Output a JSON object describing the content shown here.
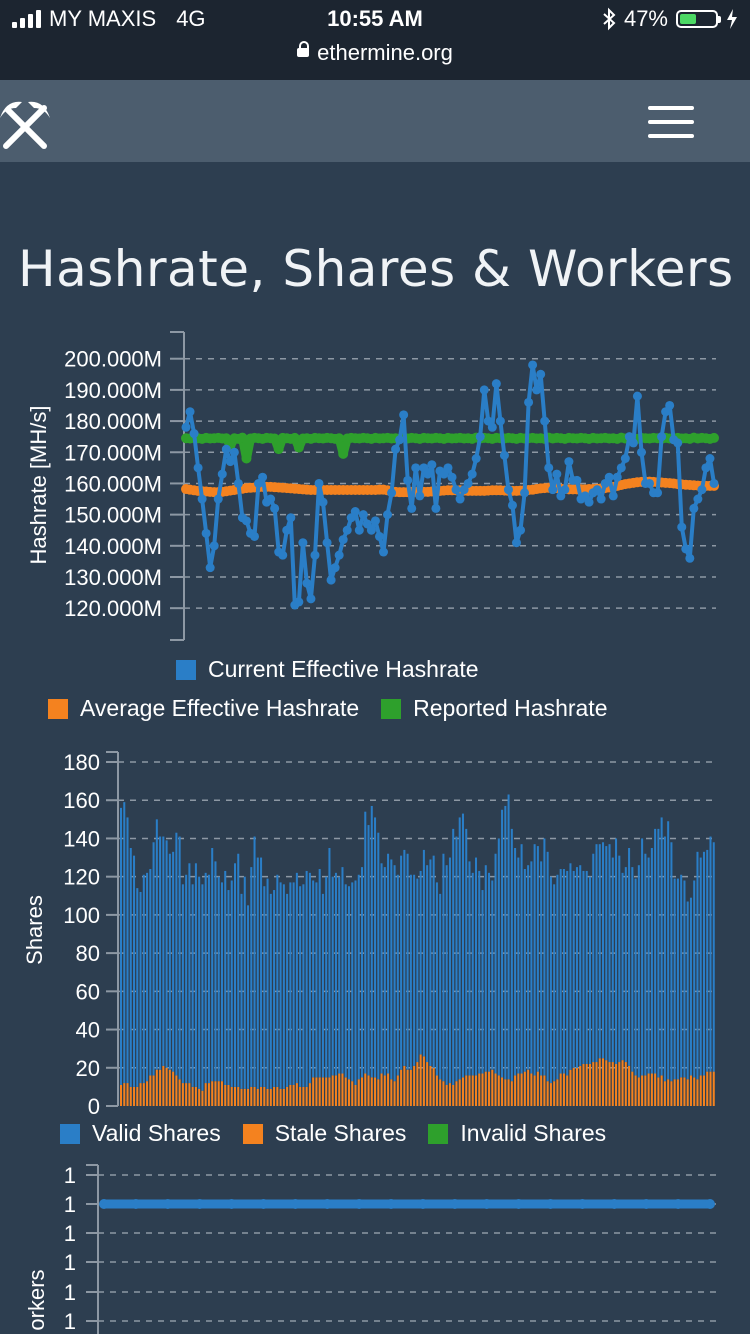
{
  "status_bar": {
    "carrier": "MY MAXIS",
    "network": "4G",
    "time": "10:55 AM",
    "url": "ethermine.org",
    "battery": "47%",
    "battery_level": 0.47,
    "icons": [
      "signal-icon",
      "lock-icon",
      "bluetooth-icon",
      "battery-icon",
      "charging-icon"
    ]
  },
  "navbar": {
    "logo_icon": "crossed-pickaxes-icon",
    "menu_icon": "hamburger-menu-icon"
  },
  "page": {
    "title": "Hashrate, Shares & Workers"
  },
  "colors": {
    "blue": "#2a7ec7",
    "orange": "#f4821f",
    "green": "#2ea02c",
    "background": "#2d3e50",
    "navbar": "#4c5d6e",
    "grid": "#8d98a4"
  },
  "chart_data": [
    {
      "type": "line",
      "ylabel": "Hashrate [MH/s]",
      "ylim": [
        113,
        206
      ],
      "yticks": [
        120,
        130,
        140,
        150,
        160,
        170,
        180,
        190,
        200
      ],
      "ytick_labels": [
        "120.000M",
        "130.000M",
        "140.000M",
        "150.000M",
        "160.000M",
        "170.000M",
        "180.000M",
        "190.000M",
        "200.000M"
      ],
      "grid": true,
      "legend_placement": "bottom",
      "series": [
        {
          "name": "Current Effective Hashrate",
          "color": "#2a7ec7",
          "values": [
            178,
            183,
            176,
            165,
            155,
            144,
            133,
            140,
            155,
            163,
            171,
            167,
            170,
            160,
            149,
            148,
            144,
            143,
            160,
            162,
            154,
            155,
            152,
            138,
            137,
            145,
            149,
            121,
            122,
            141,
            128,
            123,
            137,
            160,
            154,
            141,
            129,
            133,
            137,
            142,
            145,
            149,
            151,
            145,
            150,
            147,
            145,
            148,
            143,
            138,
            150,
            157,
            171,
            174,
            182,
            161,
            152,
            165,
            156,
            165,
            163,
            166,
            152,
            164,
            163,
            165,
            162,
            158,
            155,
            158,
            160,
            163,
            168,
            175,
            190,
            180,
            178,
            192,
            180,
            169,
            158,
            153,
            141,
            145,
            157,
            186,
            198,
            190,
            195,
            180,
            165,
            158,
            163,
            156,
            158,
            167,
            161,
            161,
            155,
            156,
            154,
            157,
            158,
            155,
            160,
            162,
            156,
            162,
            165,
            168,
            175,
            173,
            188,
            170,
            160,
            160,
            157,
            157,
            175,
            183,
            185,
            174,
            173,
            146,
            139,
            136,
            152,
            155,
            158,
            165,
            168,
            160
          ]
        },
        {
          "name": "Average Effective Hashrate",
          "color": "#f4821f",
          "values": [
            158.2,
            158.0,
            157.8,
            157.6,
            157.5,
            157.4,
            157.3,
            157.2,
            157.2,
            157.3,
            157.5,
            157.7,
            157.9,
            158.1,
            158.3,
            158.5,
            158.6,
            158.7,
            158.8,
            158.9,
            158.9,
            158.9,
            158.8,
            158.7,
            158.6,
            158.5,
            158.4,
            158.3,
            158.2,
            158.1,
            158.0,
            157.9,
            157.9,
            157.9,
            157.9,
            157.9,
            157.9,
            157.9,
            157.9,
            157.9,
            157.9,
            157.9,
            157.9,
            157.9,
            157.9,
            157.9,
            157.9,
            157.9,
            158.0,
            158.0,
            157.8,
            157.5,
            157.3,
            157.2,
            157.2,
            157.2,
            157.3,
            157.3,
            157.3,
            157.3,
            157.3,
            157.4,
            157.5,
            157.6,
            157.7,
            157.8,
            157.8,
            157.8,
            157.8,
            157.7,
            157.6,
            157.6,
            157.6,
            157.6,
            157.6,
            157.7,
            157.8,
            157.8,
            157.8,
            157.7,
            157.6,
            157.6,
            157.6,
            157.7,
            157.8,
            157.9,
            158.0,
            158.2,
            158.4,
            158.5,
            158.6,
            158.6,
            158.5,
            158.3,
            158.2,
            158.1,
            158.1,
            158.1,
            158.1,
            158.1,
            158.2,
            158.2,
            158.3,
            158.4,
            158.5,
            158.7,
            158.9,
            159.2,
            159.5,
            159.8,
            160.0,
            160.2,
            160.4,
            160.5,
            160.6,
            160.6,
            160.5,
            160.4,
            160.3,
            160.2,
            160.1,
            160.0,
            159.8,
            159.7,
            159.6,
            159.5,
            159.4,
            159.3,
            159.2,
            159.2,
            159.2,
            159.2
          ]
        },
        {
          "name": "Reported Hashrate",
          "color": "#2ea02c",
          "values": [
            174.5,
            174.4,
            174.6,
            174.5,
            174.3,
            174.6,
            174.4,
            174.5,
            174.6,
            174.4,
            174.5,
            172.0,
            174.5,
            174.3,
            174.7,
            168.0,
            174.4,
            174.6,
            174.5,
            174.3,
            174.6,
            174.5,
            174.4,
            171.0,
            174.6,
            174.5,
            174.3,
            174.6,
            171.5,
            174.4,
            174.5,
            174.3,
            174.6,
            174.5,
            174.4,
            174.6,
            174.5,
            174.3,
            174.5,
            169.5,
            174.4,
            174.6,
            174.5,
            174.4,
            174.6,
            174.5,
            174.3,
            174.6,
            174.4,
            174.5,
            174.6,
            174.4,
            174.5,
            174.3,
            174.7,
            174.4,
            174.6,
            174.5,
            174.3,
            174.6,
            174.5,
            174.4,
            174.6,
            174.5,
            174.3,
            174.6,
            174.4,
            174.5,
            174.6,
            174.4,
            174.5,
            174.3,
            174.7,
            174.4,
            174.6,
            174.5,
            174.3,
            174.6,
            174.5,
            174.4,
            174.6,
            174.5,
            174.3,
            174.6,
            174.4,
            174.5,
            174.6,
            174.4,
            174.5,
            174.3,
            174.7,
            174.4,
            174.6,
            174.5,
            174.3,
            174.6,
            174.5,
            174.4,
            174.6,
            174.5,
            174.3,
            174.6,
            174.4,
            174.5,
            174.6,
            174.4,
            174.5,
            174.3,
            174.7,
            174.4,
            174.6,
            174.5,
            174.3,
            174.6,
            174.5,
            174.4,
            174.6,
            174.5,
            174.3,
            174.6,
            174.4,
            174.5,
            174.6,
            174.4,
            174.5,
            174.3,
            174.7,
            174.4,
            174.6,
            174.5,
            174.3,
            174.6
          ]
        }
      ]
    },
    {
      "type": "bar",
      "stacked": true,
      "ylabel": "Shares",
      "ylim": [
        0,
        180
      ],
      "yticks": [
        0,
        20,
        40,
        60,
        80,
        100,
        120,
        140,
        160,
        180
      ],
      "grid": true,
      "legend_placement": "bottom",
      "series": [
        {
          "name": "Valid Shares",
          "color": "#2a7ec7",
          "values": [
            145,
            147,
            139,
            125,
            121,
            104,
            100,
            109,
            109,
            108,
            122,
            131,
            122,
            120,
            119,
            113,
            115,
            127,
            127,
            104,
            109,
            115,
            106,
            117,
            111,
            108,
            110,
            109,
            122,
            115,
            107,
            104,
            112,
            102,
            108,
            117,
            122,
            102,
            111,
            96,
            115,
            131,
            121,
            120,
            105,
            110,
            102,
            103,
            111,
            108,
            107,
            101,
            106,
            106,
            110,
            105,
            106,
            113,
            110,
            103,
            102,
            109,
            96,
            105,
            120,
            104,
            106,
            103,
            108,
            101,
            101,
            104,
            107,
            107,
            110,
            137,
            131,
            142,
            136,
            129,
            110,
            109,
            115,
            115,
            113,
            105,
            112,
            113,
            113,
            102,
            100,
            96,
            96,
            108,
            103,
            108,
            111,
            101,
            97,
            119,
            115,
            118,
            134,
            128,
            137,
            138,
            129,
            112,
            106,
            114,
            106,
            96,
            108,
            104,
            99,
            115,
            124,
            140,
            143,
            149,
            132,
            119,
            113,
            120,
            106,
            107,
            111,
            121,
            118,
            112,
            124,
            120,
            108,
            103,
            107,
            107,
            107,
            107,
            108,
            103,
            105,
            105,
            101,
            101,
            98,
            109,
            114,
            112,
            113,
            112,
            114,
            107,
            118,
            108,
            98,
            102,
            114,
            107,
            103,
            111,
            124,
            116,
            113,
            118,
            128,
            130,
            135,
            128,
            135,
            125,
            105,
            105,
            106,
            103,
            93,
            93,
            103,
            119,
            114,
            117,
            116,
            123,
            120
          ]
        },
        {
          "name": "Stale Shares",
          "color": "#f4821f",
          "values": [
            11,
            12,
            12,
            10,
            10,
            10,
            12,
            12,
            13,
            16,
            16,
            19,
            19,
            21,
            20,
            19,
            18,
            16,
            14,
            12,
            12,
            12,
            10,
            10,
            9,
            8,
            12,
            12,
            13,
            13,
            13,
            13,
            11,
            11,
            10,
            10,
            10,
            9,
            9,
            9,
            10,
            10,
            9,
            10,
            10,
            9,
            9,
            10,
            10,
            9,
            9,
            10,
            11,
            11,
            12,
            10,
            10,
            10,
            12,
            15,
            15,
            15,
            15,
            15,
            15,
            16,
            16,
            17,
            17,
            15,
            14,
            13,
            11,
            14,
            15,
            17,
            16,
            15,
            15,
            14,
            17,
            16,
            17,
            14,
            13,
            16,
            19,
            21,
            19,
            19,
            21,
            23,
            27,
            26,
            23,
            21,
            20,
            16,
            14,
            13,
            11,
            12,
            11,
            13,
            14,
            15,
            16,
            16,
            16,
            16,
            17,
            17,
            18,
            18,
            19,
            17,
            16,
            15,
            14,
            14,
            13,
            16,
            17,
            17,
            18,
            19,
            17,
            16,
            18,
            16,
            16,
            13,
            12,
            13,
            14,
            17,
            17,
            16,
            19,
            20,
            20,
            21,
            22,
            22,
            22,
            23,
            23,
            25,
            25,
            24,
            23,
            23,
            22,
            23,
            24,
            23,
            21,
            18,
            16,
            15,
            16,
            16,
            17,
            17,
            17,
            15,
            16,
            13,
            14,
            13,
            14,
            14,
            15,
            15,
            14,
            16,
            15,
            14,
            16,
            16,
            18,
            18,
            18
          ]
        },
        {
          "name": "Invalid Shares",
          "color": "#2ea02c",
          "values": []
        }
      ]
    },
    {
      "type": "line",
      "ylabel": "orkers",
      "ytick_labels": [
        "1",
        "1",
        "1",
        "1",
        "1",
        "1"
      ],
      "grid": true,
      "series": [
        {
          "name": "",
          "color": "#2a7ec7",
          "values": [
            1,
            1,
            1,
            1,
            1,
            1,
            1,
            1,
            1,
            1,
            1,
            1,
            1,
            1,
            1,
            1,
            1,
            1,
            1,
            1
          ]
        }
      ]
    }
  ]
}
